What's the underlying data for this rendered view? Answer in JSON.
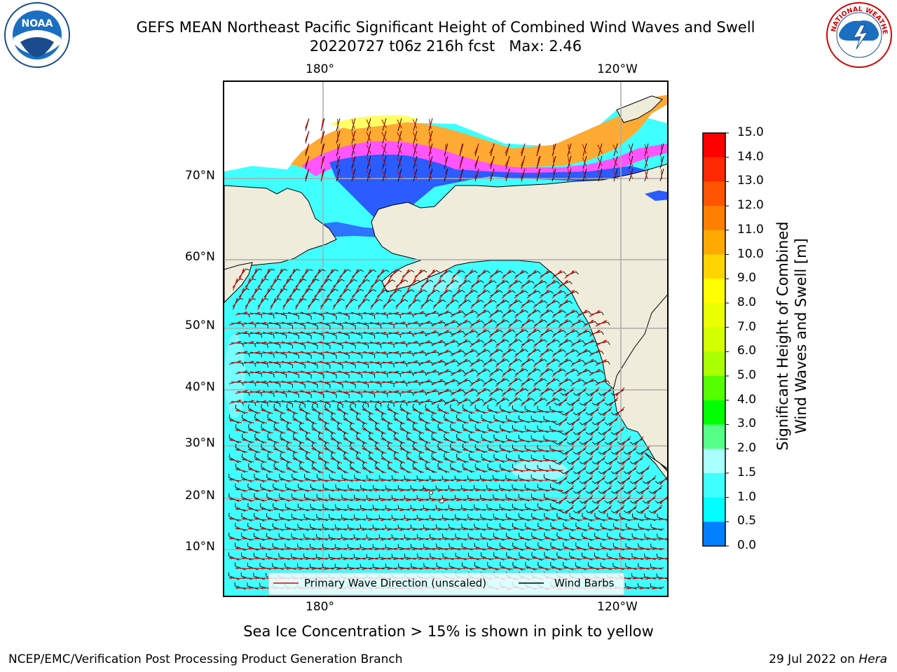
{
  "title": {
    "line1": "GEFS MEAN Northeast Pacific Significant Height of Combined Wind Waves and Swell",
    "line2": "20220727 t06z 216h fcst   Max: 2.46"
  },
  "logos": {
    "left": "NOAA",
    "right": "NATIONAL WEATHER SERVICE"
  },
  "map": {
    "lon_labels": [
      "180°",
      "120°W"
    ],
    "lat_labels": [
      "70°N",
      "60°N",
      "50°N",
      "40°N",
      "30°N",
      "20°N",
      "10°N"
    ],
    "legend": {
      "wave": "Primary Wave Direction (unscaled)",
      "wind": "Wind Barbs"
    },
    "colors": {
      "ocean": "#40ffff",
      "land": "#efecdb",
      "ice_pink": "#ff55ff",
      "ice_orange": "#ffaa33",
      "ice_yellow": "#ffff33",
      "low_wave": "#1a6cff",
      "arrow": "#e00000"
    }
  },
  "colorbar": {
    "label": "Significant Height of Combined Wind Waves and Swell [m]",
    "ticks": [
      "15.0",
      "14.0",
      "13.0",
      "12.0",
      "11.0",
      "10.0",
      "9.0",
      "8.0",
      "7.0",
      "6.0",
      "5.0",
      "4.0",
      "3.0",
      "2.0",
      "1.5",
      "1.0",
      "0.5",
      "0.0"
    ],
    "colors_top_to_bottom": [
      "#ff0000",
      "#ff2800",
      "#ff5500",
      "#ff7f00",
      "#ffaa00",
      "#ffd400",
      "#ffff00",
      "#eaff00",
      "#d4ff00",
      "#aaff00",
      "#55ff00",
      "#00ff00",
      "#55ff88",
      "#aaffff",
      "#40ffff",
      "#00ffff",
      "#007fff",
      "#0000ff"
    ]
  },
  "caption": "Sea Ice Concentration > 15% is shown in pink to yellow",
  "footer": {
    "left": "NCEP/EMC/Verification Post Processing Product Generation Branch",
    "right_date": "29 Jul 2022 on ",
    "right_host": "Hera"
  }
}
